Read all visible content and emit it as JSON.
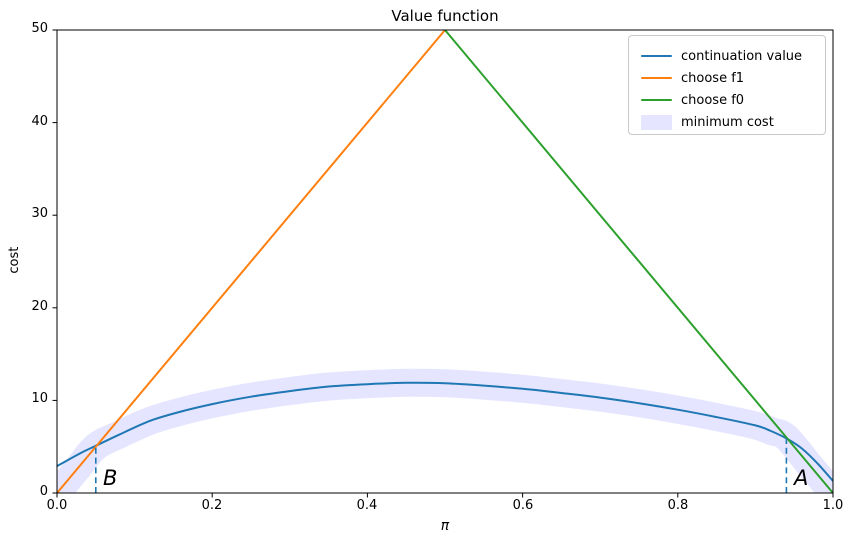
{
  "title": "Value function",
  "axes": {
    "xlabel": "π",
    "ylabel": "cost",
    "x_ticks": [
      "0.0",
      "0.2",
      "0.4",
      "0.6",
      "0.8",
      "1.0"
    ],
    "y_ticks": [
      "0",
      "10",
      "20",
      "30",
      "40",
      "50"
    ],
    "x_tick_values": [
      0,
      0.2,
      0.4,
      0.6,
      0.8,
      1.0
    ],
    "y_tick_values": [
      0,
      10,
      20,
      30,
      40,
      50
    ]
  },
  "legend": {
    "items": [
      {
        "label": "continuation value",
        "color": "#1f77b4",
        "swatch": "line"
      },
      {
        "label": "choose f1",
        "color": "#ff7f0e",
        "swatch": "line"
      },
      {
        "label": "choose f0",
        "color": "#2ca02c",
        "swatch": "line"
      },
      {
        "label": "minimum cost",
        "color": "rgba(0,0,255,0.1)",
        "swatch": "patch"
      }
    ]
  },
  "chart_data": {
    "type": "line",
    "title": "Value function",
    "xlabel": "π",
    "ylabel": "cost",
    "xlim": [
      0,
      1
    ],
    "ylim": [
      0,
      50
    ],
    "grid": false,
    "legend_position": "upper right",
    "series": [
      {
        "name": "continuation value",
        "color": "#1f77b4",
        "band": false,
        "x": [
          0,
          0.03,
          0.05,
          0.08,
          0.12,
          0.16,
          0.2,
          0.25,
          0.3,
          0.35,
          0.4,
          0.45,
          0.5,
          0.55,
          0.6,
          0.65,
          0.7,
          0.75,
          0.8,
          0.85,
          0.9,
          0.92,
          0.94,
          0.96,
          0.98,
          1.0
        ],
        "y": [
          2.9,
          4.3,
          5.1,
          6.3,
          7.8,
          8.8,
          9.6,
          10.4,
          11.0,
          11.5,
          11.75,
          11.9,
          11.85,
          11.6,
          11.25,
          10.8,
          10.3,
          9.7,
          9.0,
          8.2,
          7.3,
          6.7,
          5.9,
          4.8,
          3.2,
          1.3
        ]
      },
      {
        "name": "choose f1",
        "color": "#ff7f0e",
        "band": false,
        "x": [
          0,
          0.5
        ],
        "y": [
          0,
          50
        ]
      },
      {
        "name": "choose f0",
        "color": "#2ca02c",
        "band": false,
        "x": [
          0.5,
          1.0
        ],
        "y": [
          50,
          0
        ]
      },
      {
        "name": "minimum cost",
        "color": "rgba(0,0,255,0.1)",
        "band": true,
        "x": [
          0,
          0.025,
          0.05,
          0.08,
          0.12,
          0.16,
          0.2,
          0.25,
          0.3,
          0.35,
          0.4,
          0.45,
          0.5,
          0.55,
          0.6,
          0.65,
          0.7,
          0.75,
          0.8,
          0.85,
          0.9,
          0.92,
          0.94,
          0.97,
          1.0
        ],
        "y": [
          0,
          2.5,
          5.0,
          6.3,
          7.8,
          8.8,
          9.6,
          10.4,
          11.0,
          11.5,
          11.75,
          11.9,
          11.85,
          11.6,
          11.25,
          10.8,
          10.3,
          9.7,
          9.0,
          8.2,
          7.3,
          6.7,
          6.0,
          3.0,
          0
        ]
      }
    ],
    "annotations": [
      {
        "text": "B",
        "x": 0.05,
        "y_top": 5.0
      },
      {
        "text": "A",
        "x": 0.94,
        "y_top": 6.0
      }
    ]
  }
}
